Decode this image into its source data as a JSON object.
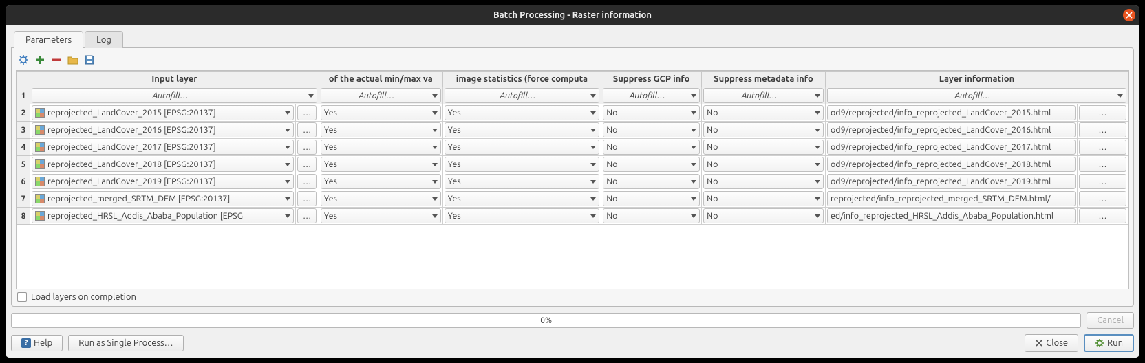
{
  "window": {
    "title": "Batch Processing - Raster information"
  },
  "tabs": {
    "parameters": "Parameters",
    "log": "Log"
  },
  "autofill_label": "Autofill…",
  "columns": {
    "input": "Input layer",
    "minmax": "of the actual min/max va",
    "stats": "image statistics (force computa",
    "gcp": "Suppress GCP info",
    "meta": "Suppress metadata info",
    "layerinfo": "Layer information",
    "widths": {
      "rownum": 18,
      "input": 365,
      "dots": 32,
      "minmax": 170,
      "stats": 218,
      "gcp": 138,
      "meta": 170,
      "layerinfo": 346,
      "dots2": 70
    }
  },
  "rows": [
    {
      "n": "2",
      "input": "reprojected_LandCover_2015 [EPSG:20137]",
      "minmax": "Yes",
      "stats": "Yes",
      "gcp": "No",
      "meta": "No",
      "out": "od9/reprojected/info_reprojected_LandCover_2015.html"
    },
    {
      "n": "3",
      "input": "reprojected_LandCover_2016 [EPSG:20137]",
      "minmax": "Yes",
      "stats": "Yes",
      "gcp": "No",
      "meta": "No",
      "out": "od9/reprojected/info_reprojected_LandCover_2016.html"
    },
    {
      "n": "4",
      "input": "reprojected_LandCover_2017 [EPSG:20137]",
      "minmax": "Yes",
      "stats": "Yes",
      "gcp": "No",
      "meta": "No",
      "out": "od9/reprojected/info_reprojected_LandCover_2017.html"
    },
    {
      "n": "5",
      "input": "reprojected_LandCover_2018 [EPSG:20137]",
      "minmax": "Yes",
      "stats": "Yes",
      "gcp": "No",
      "meta": "No",
      "out": "od9/reprojected/info_reprojected_LandCover_2018.html"
    },
    {
      "n": "6",
      "input": "reprojected_LandCover_2019 [EPSG:20137]",
      "minmax": "Yes",
      "stats": "Yes",
      "gcp": "No",
      "meta": "No",
      "out": "od9/reprojected/info_reprojected_LandCover_2019.html"
    },
    {
      "n": "7",
      "input": "reprojected_merged_SRTM_DEM [EPSG:20137]",
      "minmax": "Yes",
      "stats": "Yes",
      "gcp": "No",
      "meta": "No",
      "out": "/reprojected/info_reprojected_merged_SRTM_DEM.html"
    },
    {
      "n": "8",
      "input": "reprojected_HRSL_Addis_Ababa_Population [EPSG",
      "minmax": "Yes",
      "stats": "Yes",
      "gcp": "No",
      "meta": "No",
      "out": "ed/info_reprojected_HRSL_Addis_Ababa_Population.html"
    }
  ],
  "checkbox": {
    "label": "Load layers on completion",
    "checked": false
  },
  "progress": {
    "text": "0%"
  },
  "buttons": {
    "help": "Help",
    "single": "Run as Single Process…",
    "cancel": "Cancel",
    "close": "Close",
    "run": "Run"
  },
  "dots": "…",
  "colors": {
    "accent": "#e95420",
    "run_icon": "#4a8a2a"
  }
}
